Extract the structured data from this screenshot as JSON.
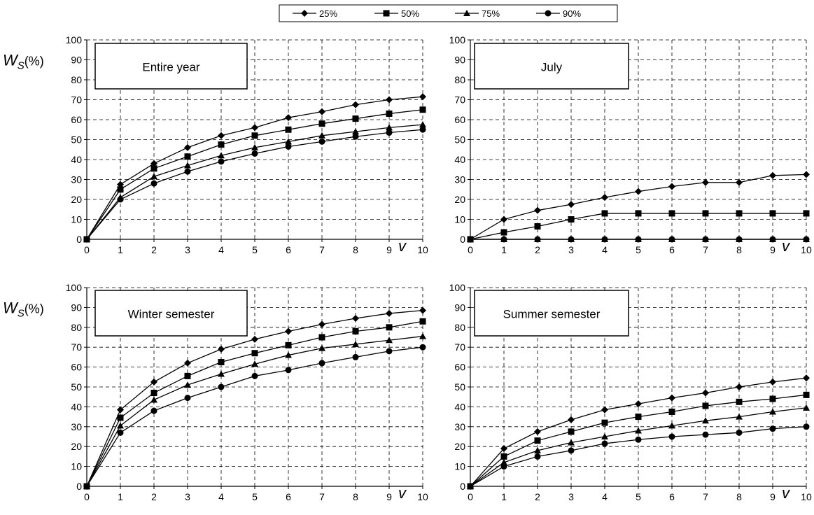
{
  "legend": [
    {
      "label": "25%",
      "marker": "diamond"
    },
    {
      "label": "50%",
      "marker": "square"
    },
    {
      "label": "75%",
      "marker": "triangle"
    },
    {
      "label": "90%",
      "marker": "circle"
    }
  ],
  "axes": {
    "y_label_main": "W",
    "y_label_sub": "S",
    "y_label_unit": "(%)",
    "x_label": "v"
  },
  "chart_data": [
    {
      "type": "line",
      "title": "Entire year",
      "x": [
        0,
        1,
        2,
        3,
        4,
        5,
        6,
        7,
        8,
        9,
        10
      ],
      "xlim": [
        0,
        10
      ],
      "ylim": [
        0,
        100
      ],
      "xticks": [
        0,
        1,
        2,
        3,
        4,
        5,
        6,
        7,
        8,
        9,
        10
      ],
      "yticks": [
        0,
        10,
        20,
        30,
        40,
        50,
        60,
        70,
        80,
        90,
        100
      ],
      "grid": true,
      "series": [
        {
          "name": "25%",
          "values": [
            0,
            27.5,
            38,
            46,
            52,
            56,
            61,
            64,
            67.5,
            70,
            71.5
          ]
        },
        {
          "name": "50%",
          "values": [
            0,
            25,
            35.5,
            41.5,
            47.5,
            52,
            55,
            58,
            60.5,
            63,
            65
          ]
        },
        {
          "name": "75%",
          "values": [
            0,
            21,
            31.5,
            37,
            42,
            46,
            49,
            52,
            54,
            56,
            57.5
          ]
        },
        {
          "name": "90%",
          "values": [
            0,
            20,
            28,
            34,
            39,
            43,
            46.5,
            49,
            51.5,
            53.5,
            55
          ]
        }
      ]
    },
    {
      "type": "line",
      "title": "July",
      "x": [
        0,
        1,
        2,
        3,
        4,
        5,
        6,
        7,
        8,
        9,
        10
      ],
      "xlim": [
        0,
        10
      ],
      "ylim": [
        0,
        100
      ],
      "xticks": [
        0,
        1,
        2,
        3,
        4,
        5,
        6,
        7,
        8,
        9,
        10
      ],
      "yticks": [
        0,
        10,
        20,
        30,
        40,
        50,
        60,
        70,
        80,
        90,
        100
      ],
      "grid": true,
      "series": [
        {
          "name": "25%",
          "values": [
            0,
            10,
            14.5,
            17.5,
            21,
            24,
            26.5,
            28.5,
            28.5,
            32,
            32.5
          ]
        },
        {
          "name": "50%",
          "values": [
            0,
            3.5,
            6.5,
            10,
            13,
            13,
            13,
            13,
            13,
            13,
            13
          ]
        },
        {
          "name": "75%",
          "values": [
            0,
            0,
            0,
            0,
            0,
            0,
            0,
            0,
            0,
            0,
            0
          ]
        },
        {
          "name": "90%",
          "values": [
            0,
            0,
            0,
            0,
            0,
            0,
            0,
            0,
            0,
            0,
            0
          ]
        }
      ]
    },
    {
      "type": "line",
      "title": "Winter semester",
      "x": [
        0,
        1,
        2,
        3,
        4,
        5,
        6,
        7,
        8,
        9,
        10
      ],
      "xlim": [
        0,
        10
      ],
      "ylim": [
        0,
        100
      ],
      "xticks": [
        0,
        1,
        2,
        3,
        4,
        5,
        6,
        7,
        8,
        9,
        10
      ],
      "yticks": [
        0,
        10,
        20,
        30,
        40,
        50,
        60,
        70,
        80,
        90,
        100
      ],
      "grid": true,
      "series": [
        {
          "name": "25%",
          "values": [
            0,
            38.5,
            52.5,
            62,
            69,
            74,
            78,
            81.5,
            84.5,
            87,
            88.5
          ]
        },
        {
          "name": "50%",
          "values": [
            0,
            34.5,
            47,
            55.5,
            62.5,
            67,
            71,
            75,
            78,
            80,
            83
          ]
        },
        {
          "name": "75%",
          "values": [
            0,
            30.5,
            43.5,
            51,
            56.5,
            61.5,
            66,
            69.5,
            71.5,
            73.5,
            75.5
          ]
        },
        {
          "name": "90%",
          "values": [
            0,
            27,
            38,
            44.5,
            50,
            55.5,
            58.5,
            62,
            65,
            68,
            70
          ]
        }
      ]
    },
    {
      "type": "line",
      "title": "Summer semester",
      "x": [
        0,
        1,
        2,
        3,
        4,
        5,
        6,
        7,
        8,
        9,
        10
      ],
      "xlim": [
        0,
        10
      ],
      "ylim": [
        0,
        100
      ],
      "xticks": [
        0,
        1,
        2,
        3,
        4,
        5,
        6,
        7,
        8,
        9,
        10
      ],
      "yticks": [
        0,
        10,
        20,
        30,
        40,
        50,
        60,
        70,
        80,
        90,
        100
      ],
      "grid": true,
      "series": [
        {
          "name": "25%",
          "values": [
            0,
            19,
            27.5,
            33.5,
            38.5,
            41.5,
            44.5,
            47,
            50,
            52.5,
            54.5
          ]
        },
        {
          "name": "50%",
          "values": [
            0,
            15,
            23,
            27.5,
            32,
            35,
            37.5,
            40.5,
            42.5,
            44,
            46
          ]
        },
        {
          "name": "75%",
          "values": [
            0,
            12,
            18,
            22,
            25,
            28,
            30.5,
            33,
            35,
            37.5,
            39.5
          ]
        },
        {
          "name": "90%",
          "values": [
            0,
            10,
            15,
            18,
            21.5,
            23.5,
            25,
            26,
            27,
            29,
            30
          ]
        }
      ]
    }
  ]
}
